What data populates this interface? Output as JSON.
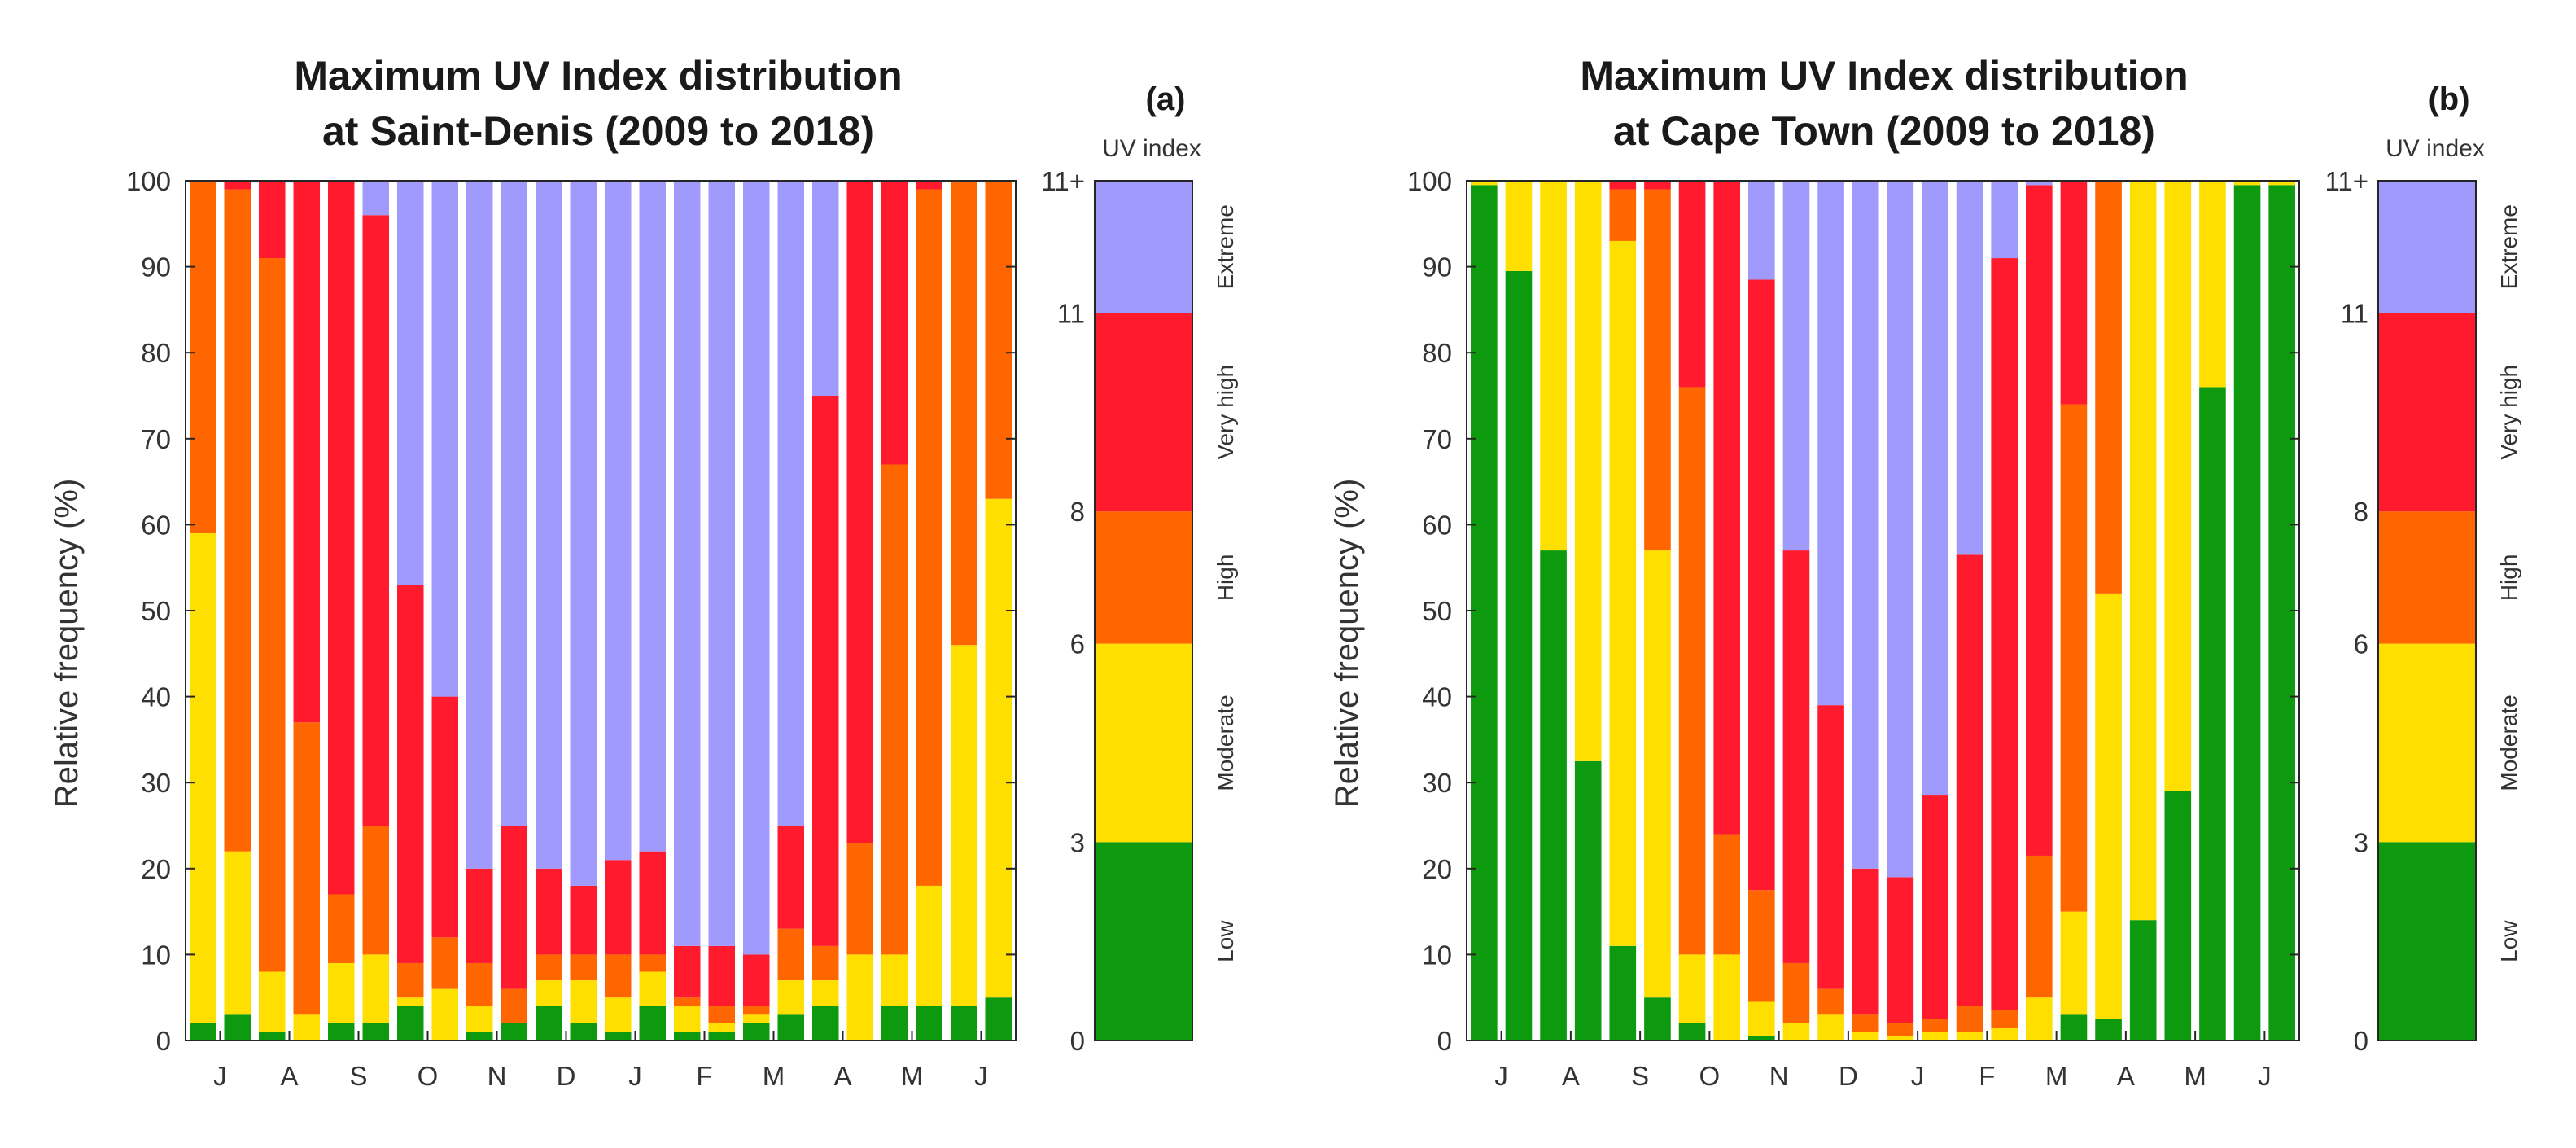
{
  "colors": {
    "Low": "#0e9a0e",
    "Moderate": "#ffdf00",
    "High": "#ff6600",
    "Very high": "#ff1a2e",
    "Extreme": "#a09afc"
  },
  "categories_order": [
    "Low",
    "Moderate",
    "High",
    "Very high",
    "Extreme"
  ],
  "colorbar": {
    "title": "UV index",
    "ticks": [
      "0",
      "3",
      "6",
      "8",
      "11",
      "11+"
    ],
    "category_labels": [
      "Low",
      "Moderate",
      "High",
      "Very high",
      "Extreme"
    ]
  },
  "chart_data": [
    {
      "type": "bar",
      "stacked": true,
      "panel_label": "(a)",
      "title": [
        "Maximum UV Index distribution",
        "at Saint-Denis (2009 to 2018)"
      ],
      "ylabel": "Relative frequency (%)",
      "xlabel": "",
      "ylim": [
        0,
        100
      ],
      "yticks": [
        0,
        10,
        20,
        30,
        40,
        50,
        60,
        70,
        80,
        90,
        100
      ],
      "xtick_labels": [
        "J",
        "A",
        "S",
        "O",
        "N",
        "D",
        "J",
        "F",
        "M",
        "A",
        "M",
        "J"
      ],
      "series_names": [
        "Low",
        "Moderate",
        "High",
        "Very high",
        "Extreme"
      ],
      "bars": [
        [
          2,
          57,
          41,
          0,
          0
        ],
        [
          3,
          19,
          77,
          1,
          0
        ],
        [
          1,
          7,
          83,
          9,
          0
        ],
        [
          0,
          3,
          34,
          63,
          0
        ],
        [
          2,
          7,
          8,
          83,
          0
        ],
        [
          2,
          8,
          15,
          71,
          4
        ],
        [
          4,
          1,
          4,
          44,
          47
        ],
        [
          0,
          6,
          6,
          28,
          60
        ],
        [
          1,
          3,
          5,
          11,
          80
        ],
        [
          2,
          0,
          4,
          19,
          75
        ],
        [
          4,
          3,
          3,
          10,
          80
        ],
        [
          2,
          5,
          3,
          8,
          82
        ],
        [
          1,
          4,
          5,
          11,
          79
        ],
        [
          4,
          4,
          2,
          12,
          78
        ],
        [
          1,
          3,
          1,
          6,
          89
        ],
        [
          1,
          1,
          2,
          7,
          89
        ],
        [
          2,
          1,
          1,
          6,
          90
        ],
        [
          3,
          4,
          6,
          12,
          75
        ],
        [
          4,
          3,
          4,
          64,
          25
        ],
        [
          0,
          10,
          13,
          77,
          0
        ],
        [
          4,
          6,
          57,
          33,
          0
        ],
        [
          4,
          14,
          81,
          1,
          0
        ],
        [
          4,
          42,
          54,
          0,
          0
        ],
        [
          5,
          58,
          37,
          0,
          0
        ]
      ]
    },
    {
      "type": "bar",
      "stacked": true,
      "panel_label": "(b)",
      "title": [
        "Maximum UV Index distribution",
        "at Cape Town (2009 to 2018)"
      ],
      "ylabel": "Relative frequency (%)",
      "xlabel": "",
      "ylim": [
        0,
        100
      ],
      "yticks": [
        0,
        10,
        20,
        30,
        40,
        50,
        60,
        70,
        80,
        90,
        100
      ],
      "xtick_labels": [
        "J",
        "A",
        "S",
        "O",
        "N",
        "D",
        "J",
        "F",
        "M",
        "A",
        "M",
        "J"
      ],
      "series_names": [
        "Low",
        "Moderate",
        "High",
        "Very high",
        "Extreme"
      ],
      "bars": [
        [
          99.5,
          0.5,
          0,
          0,
          0
        ],
        [
          89.5,
          10.5,
          0,
          0,
          0
        ],
        [
          57,
          43,
          0,
          0,
          0
        ],
        [
          32.5,
          67.5,
          0,
          0,
          0
        ],
        [
          11,
          82,
          6,
          1,
          0
        ],
        [
          5,
          52,
          42,
          1,
          0
        ],
        [
          2,
          8,
          66,
          24,
          0
        ],
        [
          0,
          10,
          14,
          76,
          0
        ],
        [
          0.5,
          4,
          13,
          71,
          11.5
        ],
        [
          0,
          2,
          7,
          48,
          43
        ],
        [
          0,
          3,
          3,
          33,
          61
        ],
        [
          0,
          1,
          2,
          17,
          80
        ],
        [
          0,
          0.5,
          1.5,
          17,
          81
        ],
        [
          0,
          1,
          1.5,
          26,
          71.5
        ],
        [
          0,
          1,
          3,
          52.5,
          43.5
        ],
        [
          0,
          1.5,
          2,
          87.5,
          9
        ],
        [
          0,
          5,
          16.5,
          78,
          0.5
        ],
        [
          3,
          12,
          59,
          26,
          0
        ],
        [
          2.5,
          49.5,
          48,
          0,
          0
        ],
        [
          14,
          86,
          0,
          0,
          0
        ],
        [
          29,
          71,
          0,
          0,
          0
        ],
        [
          76,
          24,
          0,
          0,
          0
        ],
        [
          99.5,
          0.5,
          0,
          0,
          0
        ],
        [
          99.5,
          0.5,
          0,
          0,
          0
        ]
      ]
    }
  ]
}
